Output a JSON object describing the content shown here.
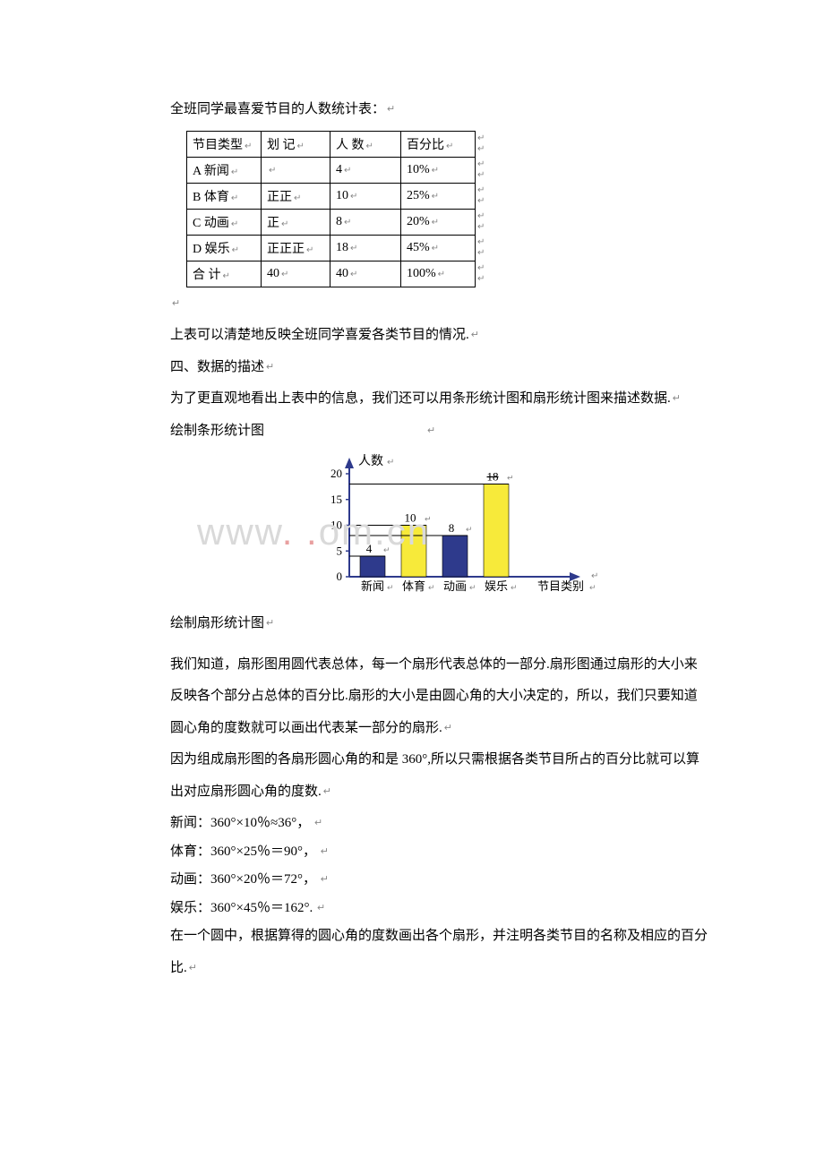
{
  "title": "全班同学最喜爱节目的人数统计表：",
  "table": {
    "headers": [
      "节目类型",
      "划 记",
      "人 数",
      "百分比"
    ],
    "rows": [
      {
        "type": "A 新闻",
        "tally": "",
        "count": "4",
        "pct": "10%"
      },
      {
        "type": "B 体育",
        "tally": "正正",
        "count": "10",
        "pct": "25%"
      },
      {
        "type": "C 动画",
        "tally": "正",
        "count": "8",
        "pct": "20%"
      },
      {
        "type": "D 娱乐",
        "tally": "正正正",
        "count": "18",
        "pct": "45%"
      },
      {
        "type": "合 计",
        "tally": "40",
        "count": "40",
        "pct": "100%"
      }
    ]
  },
  "para1": "上表可以清楚地反映全班同学喜爱各类节目的情况.",
  "heading2": "四、数据的描述",
  "para2": "为了更直观地看出上表中的信息，我们还可以用条形统计图和扇形统计图来描述数据.",
  "barTitle": "绘制条形统计图",
  "barChart": {
    "yLabel": "人数",
    "xLabel": "节目类别",
    "yTicks": [
      0,
      5,
      10,
      15,
      20
    ],
    "yMax": 20,
    "categories": [
      "新闻",
      "体育",
      "动画",
      "娱乐"
    ],
    "values": [
      4,
      10,
      8,
      18
    ],
    "barLabels": [
      "4",
      "10",
      "8",
      "18"
    ],
    "barLabelStrike": [
      false,
      false,
      false,
      true
    ],
    "colors": {
      "bars": [
        "#2e3a8c",
        "#f7ea3a",
        "#2e3a8c",
        "#f7ea3a"
      ],
      "axis": "#2e3a8c",
      "guide": "#000000",
      "text": "#000000"
    },
    "barWidth": 28,
    "gap": 18,
    "originX": 60,
    "originY": 140,
    "axisHeight": 115,
    "axisWidth": 250
  },
  "pieTitle": "绘制扇形统计图",
  "para3a": "我们知道，扇形图用圆代表总体，每一个扇形代表总体的一部分.扇形图通过扇形的大小来",
  "para3b": "反映各个部分占总体的百分比.扇形的大小是由圆心角的大小决定的，所以，我们只要知道",
  "para3c": "圆心角的度数就可以画出代表某一部分的扇形.",
  "para4a": "因为组成扇形图的各扇形圆心角的和是 360°,所以只需根据各类节目所占的百分比就可以算",
  "para4b": "出对应扇形圆心角的度数.",
  "calcs": [
    "新闻：360°×10％≈36°，",
    "体育：360°×25％＝90°，",
    "动画：360°×20％＝72°，",
    "娱乐：360°×45％＝162°."
  ],
  "para5a": "在一个圆中，根据算得的圆心角的度数画出各个扇形，并注明各类节目的名称及相应的百分",
  "para5b": "比."
}
